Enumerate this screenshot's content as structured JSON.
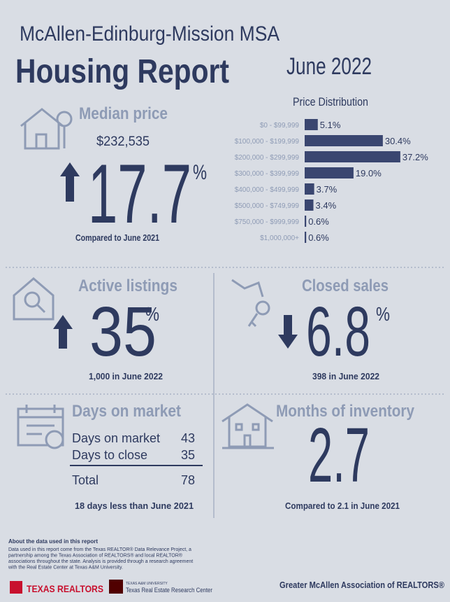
{
  "header": {
    "region": "McAllen-Edinburg-Mission MSA",
    "title": "Housing Report",
    "date": "June 2022"
  },
  "median_price": {
    "title": "Median price",
    "value": "$232,535",
    "change": "17.7",
    "unit": "%",
    "note": "Compared to June 2021"
  },
  "chart_data": {
    "type": "bar",
    "title": "Price Distribution",
    "categories": [
      "$0 - $99,999",
      "$100,000 - $199,999",
      "$200,000 - $299,999",
      "$300,000 - $399,999",
      "$400,000 - $499,999",
      "$500,000 - $749,999",
      "$750,000 - $999,999",
      "$1,000,000+"
    ],
    "values": [
      5.1,
      30.4,
      37.2,
      19.0,
      3.7,
      3.4,
      0.6,
      0.6
    ],
    "value_labels": [
      "5.1%",
      "30.4%",
      "37.2%",
      "19.0%",
      "3.7%",
      "3.4%",
      "0.6%",
      "0.6%"
    ],
    "color": "#3a4670"
  },
  "active_listings": {
    "title": "Active listings",
    "change": "35",
    "unit": "%",
    "note": "1,000 in June 2022"
  },
  "closed_sales": {
    "title": "Closed sales",
    "change": "6.8",
    "unit": "%",
    "note": "398 in June 2022"
  },
  "days_on_market": {
    "title": "Days on market",
    "rows": [
      [
        "Days on market",
        "43"
      ],
      [
        "Days to close",
        "35"
      ],
      [
        "Total",
        "78"
      ]
    ],
    "note": "18 days less than June 2021"
  },
  "months_of_inventory": {
    "title": "Months of inventory",
    "value": "2.7",
    "note": "Compared to 2.1 in June 2021"
  },
  "footer": {
    "about_title": "About the data used in this report",
    "about_lines": [
      "Data used in this report come from the Texas REALTOR® Data Relevance Project, a",
      "partnership among the Texas Association of REALTORS® and local REALTOR®",
      "associations throughout the state. Analysis is provided through a research agreement",
      "with the Real Estate Center at Texas A&M University."
    ],
    "logo_realtors": "TEXAS REALTORS",
    "logo_tamu_small": "TEXAS A&M UNIVERSITY",
    "logo_tamu": "Texas Real Estate Research Center",
    "association": "Greater McAllen Association of REALTORS®"
  }
}
